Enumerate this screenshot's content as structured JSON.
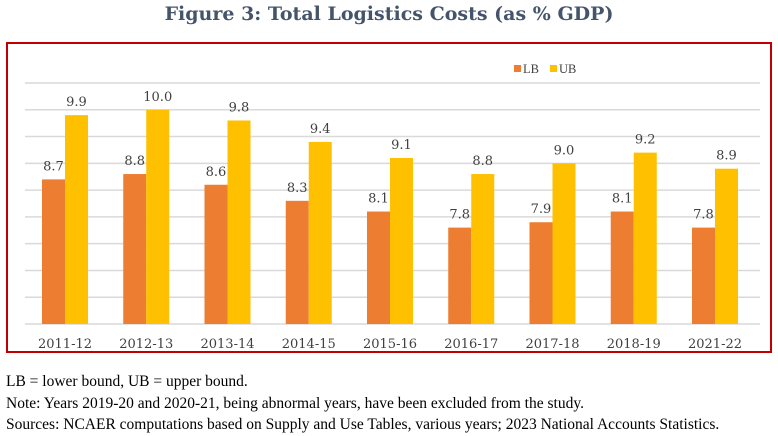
{
  "chart_data": {
    "type": "bar",
    "title": "Figure 3: Total Logistics Costs (as % GDP)",
    "xlabel": "",
    "ylabel": "",
    "ylim": [
      6,
      10.5
    ],
    "grid": true,
    "grid_step": 0.5,
    "legend_position": "top-right",
    "categories": [
      "2011-12",
      "2012-13",
      "2013-14",
      "2014-15",
      "2015-16",
      "2016-17",
      "2017-18",
      "2018-19",
      "2021-22"
    ],
    "series": [
      {
        "name": "LB",
        "color": "#ed7d31",
        "values": [
          8.7,
          8.8,
          8.6,
          8.3,
          8.1,
          7.8,
          7.9,
          8.1,
          7.8
        ],
        "labels": [
          "8.7",
          "8.8",
          "8.6",
          "8.3",
          "8.1",
          "7.8",
          "7.9",
          "8.1",
          "7.8"
        ]
      },
      {
        "name": "UB",
        "color": "#ffc000",
        "values": [
          9.9,
          10.0,
          9.8,
          9.4,
          9.1,
          8.8,
          9.0,
          9.2,
          8.9
        ],
        "labels": [
          "9.9",
          "10.0",
          "9.8",
          "9.4",
          "9.1",
          "8.8",
          "9.0",
          "9.2",
          "8.9"
        ]
      }
    ]
  },
  "notes": [
    "LB = lower bound, UB = upper bound.",
    "Note: Years 2019-20 and 2020-21, being abnormal years, have been excluded from the study.",
    "Sources: NCAER computations based on Supply and Use Tables, various years; 2023 National Accounts Statistics."
  ],
  "colors": {
    "frame": "#c00000",
    "grid": "#d9d9d9",
    "title": "#44546a"
  }
}
